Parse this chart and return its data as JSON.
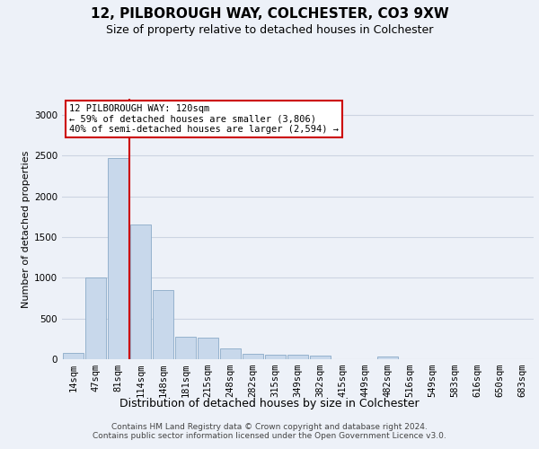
{
  "title1": "12, PILBOROUGH WAY, COLCHESTER, CO3 9XW",
  "title2": "Size of property relative to detached houses in Colchester",
  "xlabel": "Distribution of detached houses by size in Colchester",
  "ylabel": "Number of detached properties",
  "categories": [
    "14sqm",
    "47sqm",
    "81sqm",
    "114sqm",
    "148sqm",
    "181sqm",
    "215sqm",
    "248sqm",
    "282sqm",
    "315sqm",
    "349sqm",
    "382sqm",
    "415sqm",
    "449sqm",
    "482sqm",
    "516sqm",
    "549sqm",
    "583sqm",
    "616sqm",
    "650sqm",
    "683sqm"
  ],
  "values": [
    75,
    1000,
    2470,
    1650,
    850,
    275,
    270,
    130,
    70,
    60,
    55,
    40,
    0,
    0,
    35,
    0,
    0,
    0,
    0,
    0,
    0
  ],
  "bar_color": "#c8d8eb",
  "bar_edge_color": "#8aaac8",
  "grid_color": "#ccd4e2",
  "background_color": "#edf1f8",
  "vline_index": 2.5,
  "vline_color": "#cc0000",
  "annotation_line1": "12 PILBOROUGH WAY: 120sqm",
  "annotation_line2": "← 59% of detached houses are smaller (3,806)",
  "annotation_line3": "40% of semi-detached houses are larger (2,594) →",
  "annotation_box_facecolor": "#ffffff",
  "annotation_box_edgecolor": "#cc0000",
  "footer1": "Contains HM Land Registry data © Crown copyright and database right 2024.",
  "footer2": "Contains public sector information licensed under the Open Government Licence v3.0.",
  "ylim": [
    0,
    3200
  ],
  "yticks": [
    0,
    500,
    1000,
    1500,
    2000,
    2500,
    3000
  ],
  "title1_fontsize": 11,
  "title2_fontsize": 9,
  "ylabel_fontsize": 8,
  "xlabel_fontsize": 9,
  "tick_fontsize": 7.5,
  "annotation_fontsize": 7.5,
  "footer_fontsize": 6.5
}
